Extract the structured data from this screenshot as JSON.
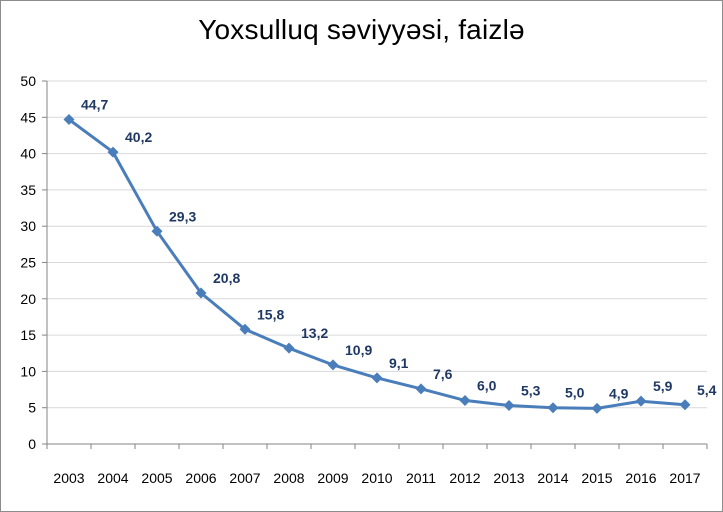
{
  "chart_data": {
    "type": "line",
    "title": "Yoxsulluq səviyyəsi, faizlə",
    "xlabel": "",
    "ylabel": "",
    "x": [
      "2003",
      "2004",
      "2005",
      "2006",
      "2007",
      "2008",
      "2009",
      "2010",
      "2011",
      "2012",
      "2013",
      "2014",
      "2015",
      "2016",
      "2017"
    ],
    "series": [
      {
        "values": [
          44.7,
          40.2,
          29.3,
          20.8,
          15.8,
          13.2,
          10.9,
          9.1,
          7.6,
          6.0,
          5.3,
          5.0,
          4.9,
          5.9,
          5.4
        ],
        "data_labels": [
          "44,7",
          "40,2",
          "29,3",
          "20,8",
          "15,8",
          "13,2",
          "10,9",
          "9,1",
          "7,6",
          "6,0",
          "5,3",
          "5,0",
          "4,9",
          "5,9",
          "5,4"
        ],
        "color": "#4a7ebb",
        "marker": "diamond"
      }
    ],
    "ylim": [
      0,
      50
    ],
    "yticks": [
      0,
      5,
      10,
      15,
      20,
      25,
      30,
      35,
      40,
      45,
      50
    ],
    "grid": true,
    "legend": "none",
    "colors": {
      "line": "#4a7ebb",
      "labels": "#1f3864",
      "grid": "#d9d9d9"
    }
  }
}
